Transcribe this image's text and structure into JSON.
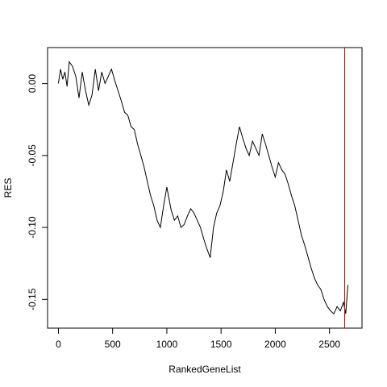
{
  "chart_data": {
    "type": "line",
    "title": "",
    "xlabel": "RankedGeneList",
    "ylabel": "RES",
    "xlim": [
      -100,
      2800
    ],
    "ylim": [
      -0.17,
      0.025
    ],
    "x_ticks": [
      0,
      500,
      1000,
      1500,
      2000,
      2500
    ],
    "y_ticks": [
      0.0,
      -0.05,
      -0.1,
      -0.15
    ],
    "x_tick_labels": [
      "0",
      "500",
      "1000",
      "1500",
      "2000",
      "2500"
    ],
    "y_tick_labels": [
      "0.00",
      "-0.05",
      "-0.10",
      "-0.15"
    ],
    "grid": false,
    "legend": "none",
    "line_color": "#000000",
    "marker_line": {
      "x": 2640,
      "color": "#cc0000"
    },
    "series": [
      {
        "x": [
          0,
          20,
          40,
          60,
          80,
          100,
          130,
          160,
          190,
          220,
          250,
          280,
          310,
          340,
          370,
          400,
          430,
          460,
          490,
          520,
          550,
          580,
          610,
          640,
          670,
          700,
          730,
          760,
          790,
          820,
          850,
          880,
          910,
          940,
          970,
          1000,
          1020,
          1040,
          1070,
          1100,
          1130,
          1160,
          1190,
          1220,
          1250,
          1280,
          1310,
          1340,
          1370,
          1400,
          1430,
          1460,
          1490,
          1520,
          1550,
          1580,
          1610,
          1640,
          1670,
          1700,
          1730,
          1760,
          1790,
          1820,
          1850,
          1880,
          1910,
          1940,
          1970,
          2000,
          2030,
          2060,
          2090,
          2120,
          2150,
          2180,
          2210,
          2240,
          2270,
          2300,
          2330,
          2360,
          2390,
          2420,
          2450,
          2480,
          2510,
          2540,
          2570,
          2600,
          2630,
          2650,
          2670
        ],
        "y": [
          0.0,
          0.01,
          0.003,
          0.008,
          -0.002,
          0.015,
          0.012,
          0.005,
          -0.01,
          0.008,
          -0.005,
          -0.015,
          -0.008,
          0.01,
          -0.005,
          0.008,
          0.0,
          0.005,
          0.01,
          0.002,
          -0.005,
          -0.012,
          -0.02,
          -0.022,
          -0.03,
          -0.032,
          -0.042,
          -0.05,
          -0.058,
          -0.068,
          -0.078,
          -0.085,
          -0.095,
          -0.1,
          -0.085,
          -0.072,
          -0.08,
          -0.088,
          -0.095,
          -0.092,
          -0.1,
          -0.098,
          -0.092,
          -0.087,
          -0.09,
          -0.095,
          -0.1,
          -0.108,
          -0.115,
          -0.121,
          -0.1,
          -0.09,
          -0.085,
          -0.075,
          -0.06,
          -0.068,
          -0.055,
          -0.042,
          -0.03,
          -0.038,
          -0.045,
          -0.05,
          -0.04,
          -0.045,
          -0.05,
          -0.035,
          -0.042,
          -0.05,
          -0.058,
          -0.065,
          -0.055,
          -0.06,
          -0.063,
          -0.07,
          -0.078,
          -0.085,
          -0.095,
          -0.105,
          -0.112,
          -0.12,
          -0.128,
          -0.135,
          -0.14,
          -0.143,
          -0.15,
          -0.155,
          -0.158,
          -0.16,
          -0.155,
          -0.158,
          -0.152,
          -0.16,
          -0.14
        ]
      }
    ]
  }
}
